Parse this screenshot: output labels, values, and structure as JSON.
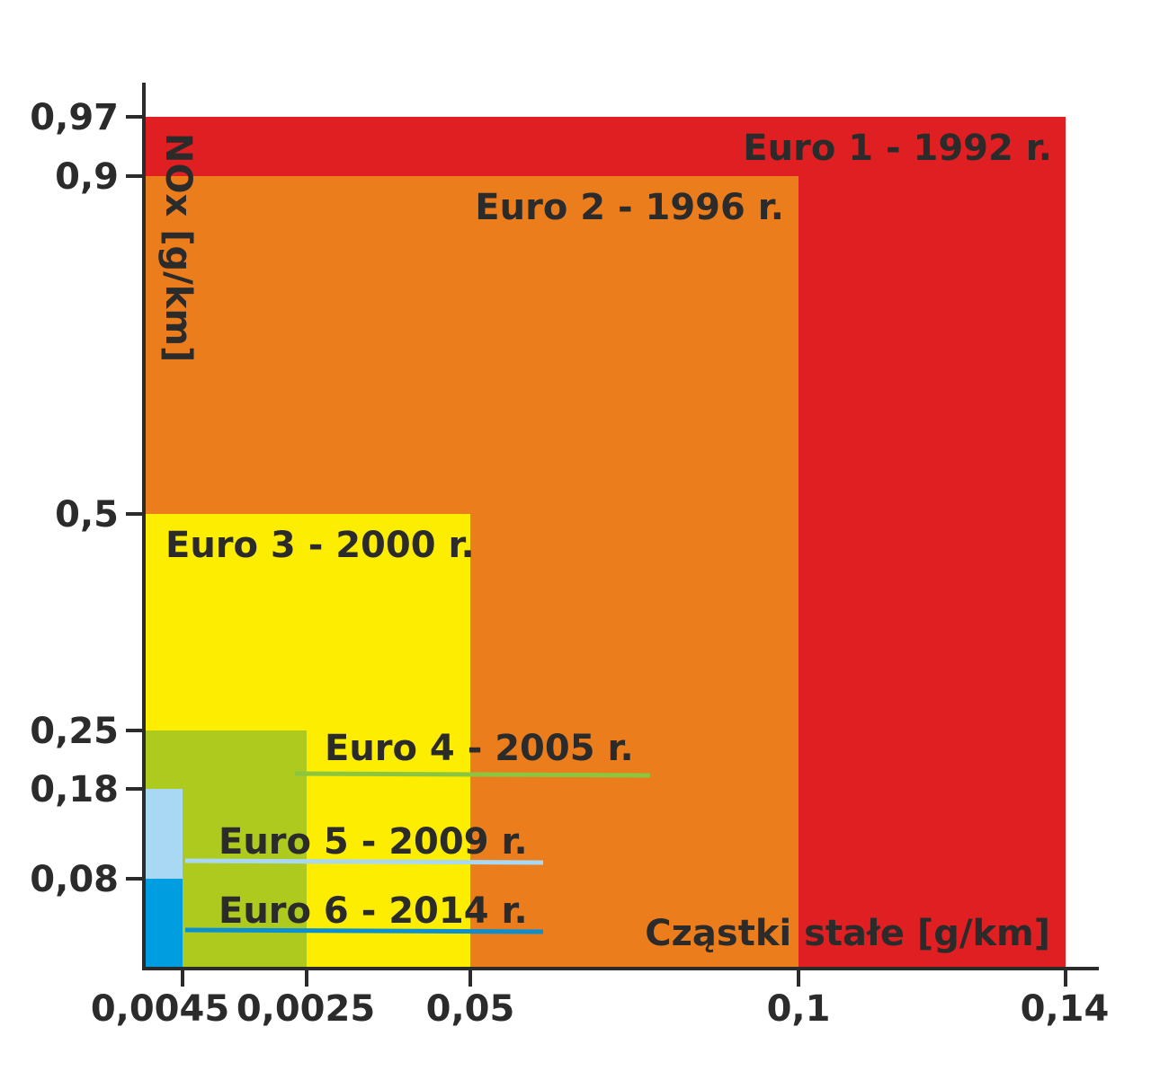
{
  "chart_data": {
    "type": "area",
    "title": "",
    "xlabel": "Cząstki stałe [g/km]",
    "ylabel": "NOx [g/km]",
    "x_ticks": [
      "0,0045",
      "0,0025",
      "0,05",
      "0,1",
      "0,14"
    ],
    "y_ticks": [
      "0,97",
      "0,9",
      "0,5",
      "0,25",
      "0,18",
      "0,08"
    ],
    "grid": false,
    "standards": [
      {
        "name": "Euro 1 - 1992 r.",
        "pm": "0,14",
        "nox": "0,97",
        "color": "#e01f22"
      },
      {
        "name": "Euro 2 - 1996 r.",
        "pm": "0,1",
        "nox": "0,9",
        "color": "#ec7d1c"
      },
      {
        "name": "Euro 3 - 2000 r.",
        "pm": "0,05",
        "nox": "0,5",
        "color": "#fded00"
      },
      {
        "name": "Euro 4 - 2005 r.",
        "pm": "0,0025",
        "nox": "0,25",
        "color": "#afca1e",
        "line_color": "#8cc63f"
      },
      {
        "name": "Euro 5 - 2009 r.",
        "pm": "0,0045",
        "nox": "0,18",
        "color": "#a8d8f4",
        "line_color": "#a8d8f4"
      },
      {
        "name": "Euro 6 - 2014 r.",
        "pm": "0,0045",
        "nox": "0,08",
        "color": "#009de0",
        "line_color": "#0a8fd0"
      }
    ]
  }
}
